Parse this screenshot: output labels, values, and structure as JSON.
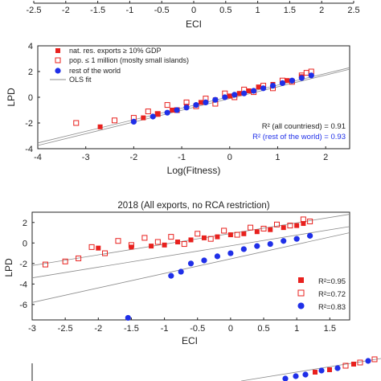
{
  "colors": {
    "red": "#e8211e",
    "blue": "#1f2fe8",
    "grey": "#8c8c8c",
    "black": "#222222"
  },
  "top_strip": {
    "xticks": [
      "-2.5",
      "-2",
      "-1.5",
      "-1",
      "-0.5",
      "0",
      "0.5",
      "1",
      "1.5",
      "2",
      "2.5"
    ],
    "xlabel": "ECI"
  },
  "panel_a": {
    "xlabel": "Log(Fitness)",
    "ylabel": "LPD",
    "xticks": [
      "-4",
      "-3",
      "-2",
      "-1",
      "0",
      "1",
      "2"
    ],
    "yticks": [
      "4",
      "2",
      "0",
      "-2",
      "-4"
    ],
    "legend": [
      {
        "label": "nat. res. exports ≥ 10% GDP",
        "marker": "filled-square"
      },
      {
        "label": "pop. ≤ 1 million (moslty small islands)",
        "marker": "open-square"
      },
      {
        "label": "rest of the world",
        "marker": "filled-circle"
      },
      {
        "label": "OLS fit",
        "marker": "line"
      }
    ],
    "r2_all": "R² (all countriesd) = 0.91",
    "r2_rest": "R² (rest of the world) = 0.93"
  },
  "panel_b": {
    "title": "2018 (All exports, no RCA restriction)",
    "xlabel": "ECI",
    "ylabel": "LPD",
    "xticks": [
      "-3",
      "-2.5",
      "-2",
      "-1.5",
      "-1",
      "-0.5",
      "0",
      "0.5",
      "1",
      "1.5"
    ],
    "yticks": [
      "2",
      "0",
      "-2",
      "-4",
      "-6"
    ],
    "legend": [
      {
        "label": "R²=0.95",
        "marker": "filled-square"
      },
      {
        "label": "R²=0.72",
        "marker": "open-square"
      },
      {
        "label": "R²=0.83",
        "marker": "filled-circle"
      }
    ]
  },
  "chart_data": [
    {
      "type": "scatter",
      "xlabel": "Log(Fitness)",
      "ylabel": "LPD",
      "xlim": [
        -4,
        2.5
      ],
      "ylim": [
        -4,
        4
      ],
      "series": [
        {
          "name": "nat. res. exports ≥ 10% GDP",
          "style": "filled-square",
          "x": [
            -2.7,
            -1.8,
            -1.5,
            -1.2,
            -0.9,
            -0.6,
            -0.3,
            0.0,
            0.2,
            0.4,
            0.6,
            0.9,
            1.2,
            1.5
          ],
          "y": [
            -2.3,
            -1.6,
            -1.3,
            -1.0,
            -0.7,
            -0.4,
            -0.2,
            0.1,
            0.3,
            0.5,
            0.8,
            1.0,
            1.3,
            1.6
          ]
        },
        {
          "name": "pop. ≤ 1 million (moslty small islands)",
          "style": "open-square",
          "x": [
            -3.2,
            -2.4,
            -2.0,
            -1.7,
            -1.5,
            -1.3,
            -1.1,
            -0.9,
            -0.7,
            -0.5,
            -0.3,
            -0.1,
            0.1,
            0.3,
            0.5,
            0.7,
            0.9,
            1.1,
            1.3,
            1.5,
            1.6,
            1.7
          ],
          "y": [
            -2.0,
            -1.8,
            -1.6,
            -1.1,
            -1.3,
            -0.6,
            -1.0,
            -0.4,
            -0.7,
            -0.1,
            -0.5,
            0.3,
            0.0,
            0.6,
            0.4,
            0.9,
            0.7,
            1.3,
            1.2,
            1.7,
            1.9,
            2.0
          ]
        },
        {
          "name": "rest of the world",
          "style": "filled-circle",
          "x": [
            -2.0,
            -1.6,
            -1.3,
            -1.1,
            -0.9,
            -0.7,
            -0.5,
            -0.3,
            -0.1,
            0.1,
            0.3,
            0.5,
            0.7,
            0.9,
            1.1,
            1.3,
            1.5,
            1.7
          ],
          "y": [
            -1.9,
            -1.5,
            -1.2,
            -1.0,
            -0.8,
            -0.6,
            -0.4,
            -0.2,
            0.0,
            0.2,
            0.3,
            0.5,
            0.7,
            0.9,
            1.1,
            1.3,
            1.5,
            1.7
          ]
        }
      ],
      "fit_lines": [
        {
          "x": [
            -4,
            2.5
          ],
          "y": [
            -3.75,
            2.18
          ]
        },
        {
          "x": [
            -4,
            2.5
          ],
          "y": [
            -3.55,
            2.3
          ]
        }
      ]
    },
    {
      "type": "scatter",
      "title": "2018 (All exports, no RCA restriction)",
      "xlabel": "ECI",
      "ylabel": "LPD",
      "xlim": [
        -3,
        1.8
      ],
      "ylim": [
        -7.5,
        3
      ],
      "series": [
        {
          "style": "filled-square",
          "legend_label": "R²=0.95",
          "x": [
            -2.0,
            -1.5,
            -1.2,
            -1.0,
            -0.8,
            -0.6,
            -0.4,
            -0.2,
            0.0,
            0.2,
            0.4,
            0.6,
            0.8,
            1.0,
            1.1
          ],
          "y": [
            -0.5,
            -0.4,
            -0.3,
            -0.2,
            0.1,
            0.3,
            0.5,
            0.6,
            0.8,
            0.9,
            1.1,
            1.3,
            1.5,
            1.7,
            1.9
          ]
        },
        {
          "style": "open-square",
          "legend_label": "R²=0.72",
          "x": [
            -2.8,
            -2.5,
            -2.3,
            -2.1,
            -1.9,
            -1.7,
            -1.5,
            -1.3,
            -1.1,
            -0.9,
            -0.7,
            -0.5,
            -0.3,
            -0.1,
            0.1,
            0.3,
            0.5,
            0.7,
            0.9,
            1.1,
            1.2
          ],
          "y": [
            -2.1,
            -1.8,
            -1.5,
            -0.4,
            -1.0,
            0.2,
            -0.2,
            0.5,
            0.1,
            0.6,
            -0.1,
            0.9,
            0.4,
            1.2,
            0.8,
            1.5,
            1.4,
            1.8,
            1.7,
            2.3,
            2.1
          ]
        },
        {
          "style": "filled-circle",
          "legend_label": "R²=0.83",
          "x": [
            -1.55,
            -0.9,
            -0.75,
            -0.6,
            -0.4,
            -0.2,
            0.0,
            0.2,
            0.4,
            0.6,
            0.8,
            1.0,
            1.2
          ],
          "y": [
            -7.3,
            -3.2,
            -2.8,
            -2.0,
            -1.7,
            -1.3,
            -1.0,
            -0.6,
            -0.3,
            -0.1,
            0.2,
            0.4,
            0.7
          ]
        }
      ],
      "fit_lines": [
        {
          "x": [
            -3,
            1.8
          ],
          "y": [
            -2.2,
            2.8
          ]
        },
        {
          "x": [
            -3,
            1.8
          ],
          "y": [
            -3.4,
            1.6
          ]
        },
        {
          "x": [
            -3,
            1.8
          ],
          "y": [
            -5.8,
            1.0
          ]
        }
      ]
    }
  ]
}
